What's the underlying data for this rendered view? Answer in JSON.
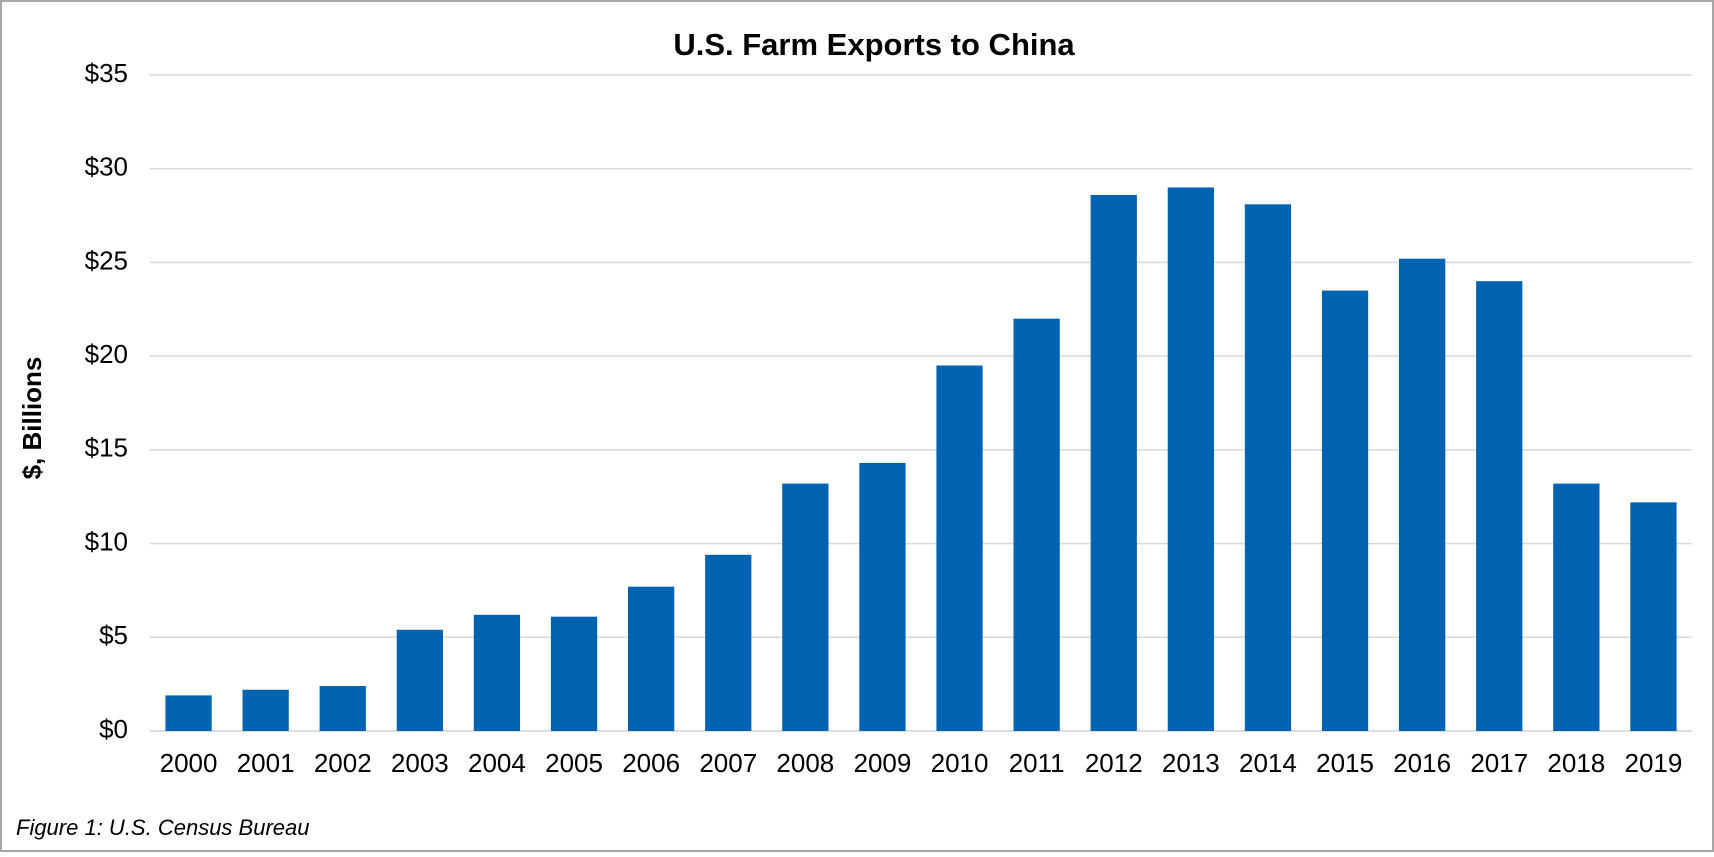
{
  "chart_data": {
    "type": "bar",
    "title": "U.S. Farm Exports to China",
    "y_label": "$, Billions",
    "caption": "Figure 1: U.S. Census Bureau",
    "categories": [
      "2000",
      "2001",
      "2002",
      "2003",
      "2004",
      "2005",
      "2006",
      "2007",
      "2008",
      "2009",
      "2010",
      "2011",
      "2012",
      "2013",
      "2014",
      "2015",
      "2016",
      "2017",
      "2018",
      "2019"
    ],
    "values": [
      1.9,
      2.2,
      2.4,
      5.4,
      6.2,
      6.1,
      7.7,
      9.4,
      13.2,
      14.3,
      19.5,
      22.0,
      28.6,
      29.0,
      28.1,
      23.5,
      25.2,
      24.0,
      13.2,
      12.2
    ],
    "color": "#0063b1",
    "ylim": [
      0,
      35
    ],
    "yticks": [
      {
        "value": 0,
        "label": "$0"
      },
      {
        "value": 5,
        "label": "$5"
      },
      {
        "value": 10,
        "label": "$10"
      },
      {
        "value": 15,
        "label": "$15"
      },
      {
        "value": 20,
        "label": "$20"
      },
      {
        "value": 25,
        "label": "$25"
      },
      {
        "value": 30,
        "label": "$30"
      },
      {
        "value": 35,
        "label": "$35"
      }
    ],
    "grid": true
  }
}
